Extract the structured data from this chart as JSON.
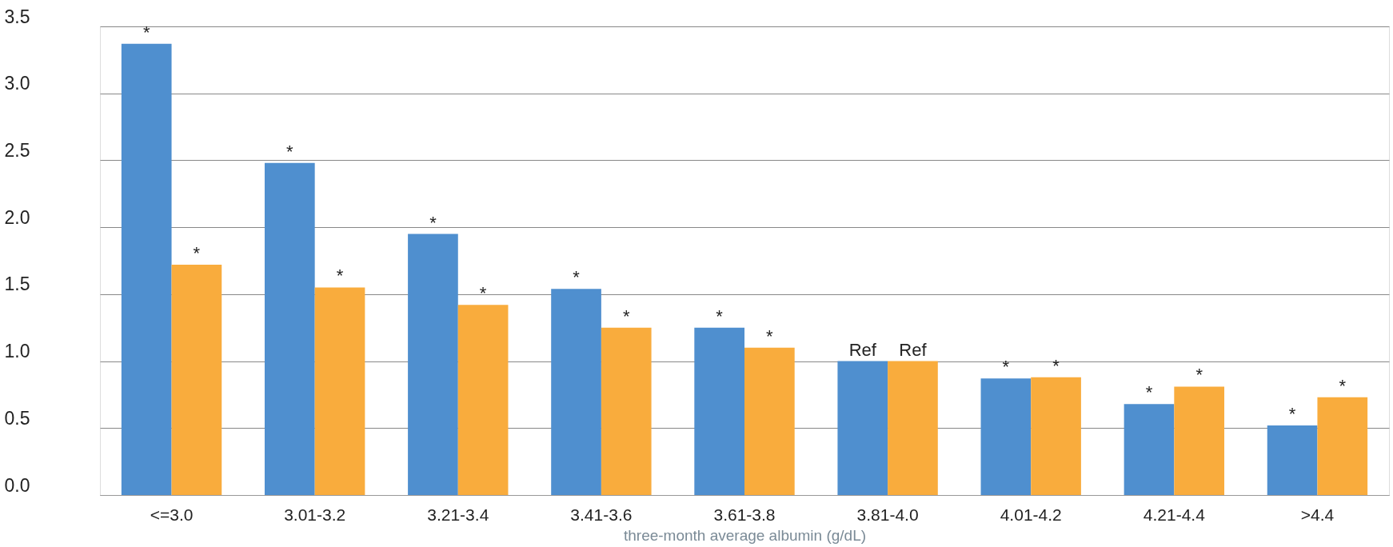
{
  "chart_data": {
    "type": "bar",
    "xlabel": "three-month average albumin (g/dL)",
    "categories": [
      "<=3.0",
      "3.01-3.2",
      "3.21-3.4",
      "3.41-3.6",
      "3.61-3.8",
      "3.81-4.0",
      "4.01-4.2",
      "4.21-4.4",
      ">4.4"
    ],
    "series": [
      {
        "color": "#4f8fcf",
        "values": [
          3.37,
          2.48,
          1.95,
          1.54,
          1.25,
          1.0,
          0.87,
          0.68,
          0.52
        ],
        "value_labels": [
          "*",
          "*",
          "*",
          "*",
          "*",
          "Ref",
          "*",
          "*",
          "*"
        ]
      },
      {
        "color": "#f9ac3d",
        "values": [
          1.72,
          1.55,
          1.42,
          1.25,
          1.1,
          1.0,
          0.88,
          0.81,
          0.73
        ],
        "value_labels": [
          "*",
          "*",
          "*",
          "*",
          "*",
          "Ref",
          "*",
          "*",
          "*"
        ]
      }
    ],
    "ylim": [
      0,
      3.5
    ],
    "yticks": [
      {
        "value": 0,
        "label": "0.0"
      },
      {
        "value": 0.5,
        "label": "0.5"
      },
      {
        "value": 1,
        "label": "1.0"
      },
      {
        "value": 1.5,
        "label": "1.5"
      },
      {
        "value": 2,
        "label": "2.0"
      },
      {
        "value": 2.5,
        "label": "2.5"
      },
      {
        "value": 3,
        "label": "3.0"
      },
      {
        "value": 3.5,
        "label": "3.5"
      }
    ],
    "grid": "y",
    "legend": false
  }
}
